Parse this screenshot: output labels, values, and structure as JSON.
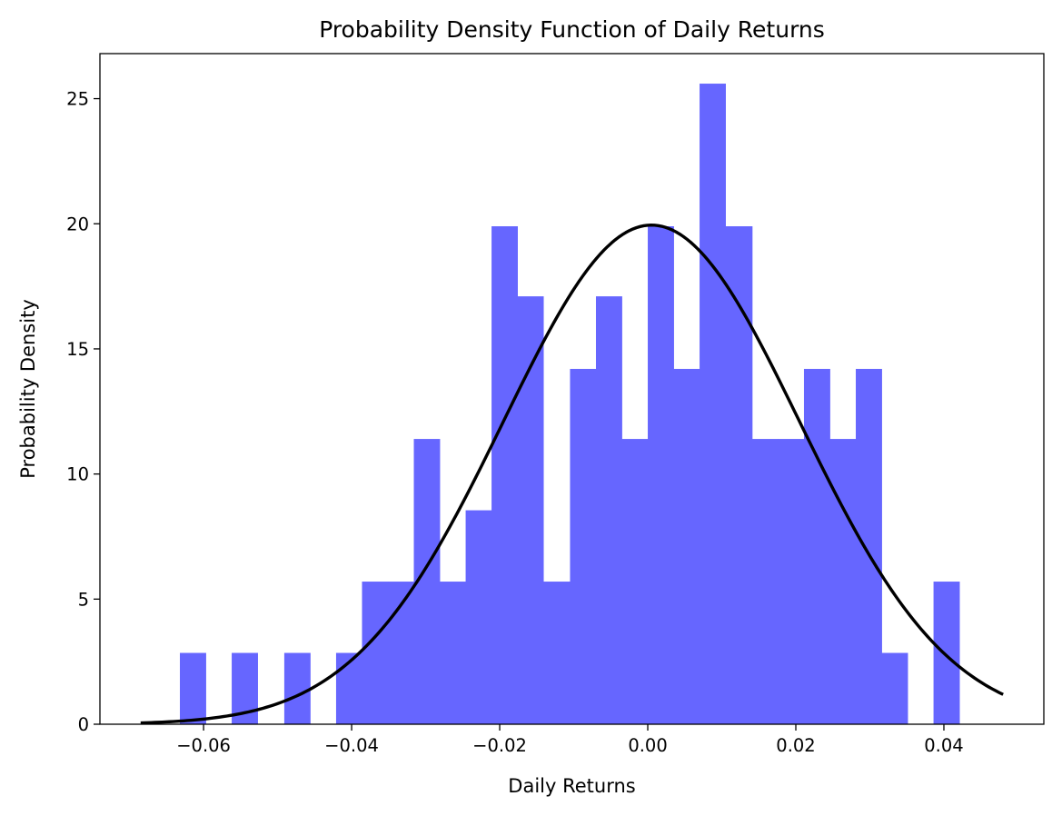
{
  "chart_data": {
    "type": "bar",
    "title": "Probability Density Function of Daily Returns",
    "xlabel": "Daily Returns",
    "ylabel": "Probability Density",
    "xlim": [
      -0.074,
      0.0535
    ],
    "ylim": [
      0,
      26.8
    ],
    "x_ticks": [
      -0.06,
      -0.04,
      -0.02,
      0.0,
      0.02,
      0.04
    ],
    "x_tick_labels": [
      "−0.06",
      "−0.04",
      "−0.02",
      "0.00",
      "0.02",
      "0.04"
    ],
    "y_ticks": [
      0,
      5,
      10,
      15,
      20,
      25
    ],
    "y_tick_labels": [
      "0",
      "5",
      "10",
      "15",
      "20",
      "25"
    ],
    "grid": false,
    "histogram": {
      "color": "#6666ff",
      "bin_edges": [
        -0.0632,
        -0.0597,
        -0.0562,
        -0.0527,
        -0.0491,
        -0.0456,
        -0.0421,
        -0.0386,
        -0.0351,
        -0.0316,
        -0.0281,
        -0.0246,
        -0.0211,
        -0.0176,
        -0.0141,
        -0.0105,
        -0.007,
        -0.0035,
        0.0,
        0.0035,
        0.007,
        0.0105,
        0.0141,
        0.0176,
        0.0211,
        0.0246,
        0.0281,
        0.0316,
        0.0351,
        0.0386,
        0.0421
      ],
      "values": [
        2.85,
        0,
        2.85,
        0,
        2.85,
        0,
        2.85,
        5.7,
        5.7,
        11.4,
        5.7,
        8.55,
        19.9,
        17.1,
        5.7,
        14.2,
        17.1,
        11.4,
        19.9,
        14.2,
        25.6,
        19.9,
        11.4,
        11.4,
        14.2,
        11.4,
        14.2,
        2.85,
        0,
        5.7
      ]
    },
    "pdf_curve": {
      "color": "#000000",
      "mean": 0.0005,
      "std": 0.02,
      "x_range": [
        -0.0685,
        0.048
      ]
    }
  }
}
